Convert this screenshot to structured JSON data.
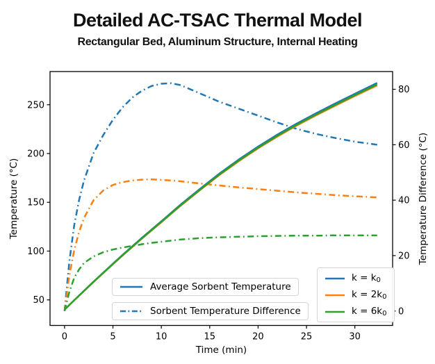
{
  "title": "Detailed AC-TSAC Thermal Model",
  "subtitle": "Rectangular Bed, Aluminum Structure, Internal Heating",
  "axes": {
    "x": {
      "label": "Time (min)",
      "ticks": [
        0,
        5,
        10,
        15,
        20,
        25,
        30
      ],
      "lim": [
        -1.5,
        33.9
      ]
    },
    "y_left": {
      "label": "Temperature (°C)",
      "ticks": [
        50,
        100,
        150,
        200,
        250
      ],
      "lim": [
        23.8,
        284.0
      ]
    },
    "y_right": {
      "label": "Temperature Difference (°C)",
      "ticks": [
        0,
        20,
        40,
        60,
        80
      ],
      "lim": [
        -5.2,
        86.4
      ]
    }
  },
  "legends": {
    "solid": {
      "label": "Average Sorbent Temperature",
      "color": "#1f77b4",
      "style": "solid"
    },
    "dashdot": {
      "label": "Sorbent Temperature Difference",
      "color": "#1f77b4",
      "style": "dashdot"
    },
    "k": {
      "entries": [
        {
          "prefix": "k = k",
          "sub": "0",
          "color": "#1f77b4"
        },
        {
          "prefix": "k = 2k",
          "sub": "0",
          "color": "#ff7f0e"
        },
        {
          "prefix": "k = 6k",
          "sub": "0",
          "color": "#2ca02c"
        }
      ]
    }
  },
  "chart_data": {
    "type": "line",
    "title": "Detailed AC-TSAC Thermal Model",
    "subtitle": "Rectangular Bed, Aluminum Structure, Internal Heating",
    "xlabel": "Time (min)",
    "ylabel_left": "Temperature (°C)",
    "ylabel_right": "Temperature Difference (°C)",
    "xlim": [
      -1.5,
      33.9
    ],
    "ylim_left": [
      23.8,
      284.0
    ],
    "ylim_right": [
      -5.2,
      86.4
    ],
    "grid": false,
    "x": [
      0,
      0.5,
      1,
      1.5,
      2,
      3,
      4,
      5,
      6,
      7,
      8,
      9,
      10,
      11,
      12,
      14,
      16,
      18,
      20,
      22,
      24,
      26,
      28,
      30,
      32.3
    ],
    "series": [
      {
        "name": "Sorbent Temperature Difference, k = k0",
        "axis": "right",
        "style": "dashdot",
        "color": "#1f77b4",
        "values": [
          0,
          18,
          31,
          40,
          47,
          57,
          63.5,
          69,
          73.5,
          77,
          79.5,
          81.2,
          82,
          82.2,
          81.5,
          78.5,
          75.5,
          73,
          70.5,
          68,
          65.7,
          63.9,
          62.4,
          61.1,
          60
        ]
      },
      {
        "name": "Sorbent Temperature Difference, k = 2k0",
        "axis": "right",
        "style": "dashdot",
        "color": "#ff7f0e",
        "values": [
          0,
          13,
          22,
          28.5,
          33.5,
          40,
          43.5,
          45.5,
          46.5,
          47.1,
          47.4,
          47.5,
          47.3,
          47.1,
          46.8,
          46,
          45.3,
          44.6,
          44,
          43.4,
          42.8,
          42.3,
          41.8,
          41.4,
          41
        ]
      },
      {
        "name": "Sorbent Temperature Difference, k = 6k0",
        "axis": "right",
        "style": "dashdot",
        "color": "#2ca02c",
        "values": [
          0,
          7,
          12,
          15,
          17.3,
          19.7,
          21.2,
          22.2,
          22.9,
          23.5,
          24.1,
          24.6,
          25,
          25.4,
          25.8,
          26.3,
          26.6,
          26.8,
          27,
          27.1,
          27.2,
          27.2,
          27.3,
          27.3,
          27.3
        ]
      },
      {
        "name": "Average Sorbent Temperature, k = k0",
        "axis": "left",
        "style": "solid",
        "color": "#1f77b4",
        "values": [
          40,
          44.8,
          49.7,
          54.5,
          59.2,
          68.7,
          77.9,
          87.1,
          96.1,
          104.9,
          113.6,
          122.1,
          130.5,
          139.1,
          147.7,
          163.8,
          179.4,
          193.8,
          207.1,
          219.4,
          230.7,
          241.3,
          251.4,
          261.2,
          272.3
        ]
      },
      {
        "name": "Average Sorbent Temperature, k = 2k0",
        "axis": "left",
        "style": "solid",
        "color": "#ff7f0e",
        "values": [
          40,
          44.8,
          49.6,
          54.3,
          59.0,
          68.4,
          77.5,
          86.6,
          95.5,
          104.2,
          112.8,
          121.2,
          129.5,
          138.1,
          146.5,
          162.5,
          177.9,
          192.1,
          205.3,
          217.4,
          228.7,
          239.1,
          249.1,
          258.9,
          269.8
        ]
      },
      {
        "name": "Average Sorbent Temperature, k = 6k0",
        "axis": "left",
        "style": "solid",
        "color": "#2ca02c",
        "values": [
          40,
          44.8,
          49.6,
          54.4,
          59.1,
          68.5,
          77.7,
          86.8,
          95.7,
          104.5,
          113.1,
          121.6,
          129.9,
          138.5,
          147.0,
          163.0,
          178.5,
          192.8,
          206.0,
          218.2,
          229.5,
          240.0,
          250.0,
          259.8,
          270.8
        ]
      }
    ]
  }
}
